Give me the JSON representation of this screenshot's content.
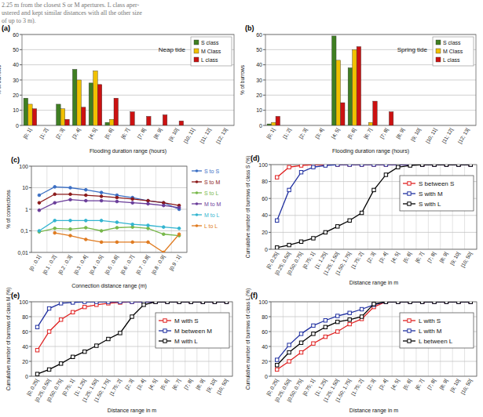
{
  "caption": [
    "2.25 m from the closest S or M apertures. L class aper-",
    "ustered and kept similar distances with all the other size",
    "of up to 3 m)."
  ],
  "chart_data": [
    {
      "type": "bar",
      "title": "(a)",
      "annotation": "Neap tide",
      "x_label": "Flooding duration range (hours)",
      "y_label": "% of burrows",
      "categories": [
        "[0; 1[",
        "[1; 2[",
        "[2; 3[",
        "[3; 4[",
        "[4; 5[",
        "[5; 6[",
        "[6; 7[",
        "[7; 8[",
        "[8; 9[",
        "[9; 10[",
        "[10; 11[",
        "[11; 12[",
        "[12; 13["
      ],
      "series": [
        {
          "name": "S class",
          "color": "#3f7f22",
          "values": [
            18,
            0,
            14,
            37,
            28,
            2,
            0,
            0,
            0,
            0,
            0,
            0,
            0
          ]
        },
        {
          "name": "M Class",
          "color": "#f0c000",
          "values": [
            14,
            0,
            11,
            30,
            36,
            4,
            0,
            0,
            0,
            0,
            0,
            0,
            0
          ]
        },
        {
          "name": "L class",
          "color": "#cc1111",
          "values": [
            11,
            0,
            4,
            12,
            27,
            18,
            9,
            6,
            7,
            3,
            0,
            0,
            0
          ]
        }
      ],
      "ylim": [
        0,
        60
      ],
      "yticks": [
        0,
        10,
        20,
        30,
        40,
        50,
        60
      ],
      "grid": true,
      "legend": "top-right"
    },
    {
      "type": "bar",
      "title": "(b)",
      "annotation": "Spring tide",
      "x_label": "Flooding duration range (hours)",
      "y_label": "% of burrows",
      "categories": [
        "[0; 1[",
        "[1; 2[",
        "[2; 3[",
        "[3; 4[",
        "[4; 5[",
        "[5; 6[",
        "[6; 7[",
        "[7; 8[",
        "[8; 9[",
        "[9; 10[",
        "[10; 11[",
        "[11; 12[",
        "[12; 13["
      ],
      "series": [
        {
          "name": "S class",
          "color": "#3f7f22",
          "values": [
            1,
            0,
            0,
            0,
            59,
            38,
            0,
            0,
            0,
            0,
            0,
            0,
            0
          ]
        },
        {
          "name": "M Class",
          "color": "#f0c000",
          "values": [
            2,
            0,
            0,
            0,
            43,
            50,
            2,
            0,
            0,
            0,
            0,
            0,
            0
          ]
        },
        {
          "name": "L class",
          "color": "#cc1111",
          "values": [
            6,
            0,
            0,
            0,
            15,
            52,
            16,
            9,
            0,
            0,
            0,
            0,
            0
          ]
        }
      ],
      "ylim": [
        0,
        60
      ],
      "yticks": [
        0,
        10,
        20,
        30,
        40,
        50,
        60
      ],
      "grid": true,
      "legend": "top-right"
    },
    {
      "type": "line",
      "title": "(c)",
      "x_label": "Connection distance range (m)",
      "y_label": "% of connections",
      "log": "y",
      "categories": [
        "[0 : 0.1[",
        "[0.1 : 0.2[",
        "[0.2 : 0.3[",
        "[0.3 : 0.4[",
        "[0.4 : 0.5[",
        "[0.5 : 0.6[",
        "[0.6 : 0.7[",
        "[0.7 : 0.8[",
        "[0.8 : 0.9[",
        "[0.9 : 1["
      ],
      "series": [
        {
          "name": "S to S",
          "color": "#3b6fc4",
          "values": [
            4.5,
            11,
            10,
            8,
            6,
            4.5,
            3.5,
            2.5,
            2,
            1
          ]
        },
        {
          "name": "S to M",
          "color": "#8b1a1a",
          "values": [
            2,
            5,
            5,
            4.5,
            4,
            3.5,
            3,
            2.5,
            2,
            1.5
          ]
        },
        {
          "name": "S to L",
          "color": "#77b84a",
          "values": [
            0.09,
            0.13,
            0.12,
            0.14,
            0.1,
            0.14,
            0.15,
            0.13,
            0.07,
            0.06
          ]
        },
        {
          "name": "M to M",
          "color": "#6a3d9a",
          "values": [
            0.9,
            2,
            2.8,
            2.5,
            2.5,
            2.3,
            2,
            1.8,
            1.5,
            1.2
          ]
        },
        {
          "name": "M to L",
          "color": "#33b5d0",
          "values": [
            0.1,
            0.3,
            0.3,
            0.3,
            0.3,
            0.25,
            0.2,
            0.18,
            0.15,
            0.13
          ]
        },
        {
          "name": "L to L",
          "color": "#e07b20",
          "values": [
            null,
            0.08,
            0.06,
            0.04,
            0.03,
            0.03,
            0.03,
            0.03,
            0.01,
            0.07
          ]
        }
      ],
      "ylim": [
        0.01,
        100
      ],
      "yticks": [
        {
          "value": 0.01,
          "label": "0,01"
        },
        {
          "value": 0.1,
          "label": "0,1"
        },
        1,
        10,
        100
      ],
      "grid": true,
      "legend": "right",
      "marker": "circle"
    },
    {
      "type": "line",
      "title": "(d)",
      "x_label": "Distance range in m",
      "y_label": "Cumulative number of burrows of class S (%)",
      "categories": [
        "[0; 0.25[",
        "[0.25; 0.50[",
        "[0.50; 0.75[",
        "[0.75; 1[",
        "[1; 1.25[",
        "[1.25; 1.50[",
        "[1.50; 1.75[",
        "[1.75; 2[",
        "[2; 3[",
        "[3; 4[",
        "[4; 5[",
        "[5; 6[",
        "[6; 7[",
        "[7; 8[",
        "[8; 9[",
        "[9; 10[",
        "[10; 50["
      ],
      "series": [
        {
          "name": "S between S",
          "color": "#e02020",
          "values": [
            85,
            97,
            99,
            100,
            100,
            100,
            100,
            100,
            100,
            100,
            100,
            100,
            100,
            100,
            100,
            100,
            100
          ]
        },
        {
          "name": "S with M",
          "color": "#2030a0",
          "values": [
            34,
            70,
            91,
            97,
            99,
            100,
            100,
            100,
            100,
            100,
            100,
            100,
            100,
            100,
            100,
            100,
            100
          ]
        },
        {
          "name": "S with L",
          "color": "#000000",
          "values": [
            2,
            5,
            9,
            13,
            20,
            27,
            34,
            43,
            70,
            88,
            97,
            99,
            100,
            100,
            100,
            100,
            100
          ]
        }
      ],
      "ylim": [
        0,
        100
      ],
      "yticks": [
        0,
        20,
        40,
        60,
        80,
        100
      ],
      "grid": true,
      "legend": "top-right",
      "marker": "square"
    },
    {
      "type": "line",
      "title": "(e)",
      "x_label": "Distance range in m",
      "y_label": "Cumulative number of burrows of class M (%)",
      "categories": [
        "[0; 0.25[",
        "[0.25; 0.50[",
        "[0.50; 0.75[",
        "[0.75; 1[",
        "[1; 1.25[",
        "[1.25; 1.50[",
        "[1.50; 1.75[",
        "[1.75; 2[",
        "[2; 3[",
        "[3; 4[",
        "[4; 5[",
        "[5; 6[",
        "[6; 7[",
        "[7; 8[",
        "[8; 9[",
        "[9; 10[",
        "[10; 50["
      ],
      "series": [
        {
          "name": "M with S",
          "color": "#e02020",
          "values": [
            35,
            60,
            76,
            86,
            93,
            96,
            98,
            99,
            100,
            100,
            100,
            100,
            100,
            100,
            100,
            100,
            100
          ]
        },
        {
          "name": "M between M",
          "color": "#2030a0",
          "values": [
            66,
            91,
            98,
            99,
            100,
            100,
            100,
            100,
            100,
            100,
            100,
            100,
            100,
            100,
            100,
            100,
            100
          ]
        },
        {
          "name": "M with L",
          "color": "#000000",
          "values": [
            3,
            9,
            17,
            26,
            33,
            41,
            50,
            58,
            80,
            96,
            100,
            100,
            100,
            100,
            100,
            100,
            100
          ]
        }
      ],
      "ylim": [
        0,
        100
      ],
      "yticks": [
        0,
        20,
        40,
        60,
        80,
        100
      ],
      "grid": true,
      "legend": "top-right",
      "marker": "square"
    },
    {
      "type": "line",
      "title": "(f)",
      "x_label": "Distance range in m",
      "y_label": "Cumulative number of burrows of class L (%)",
      "categories": [
        "[0; 0.25[",
        "[0.25; 0.50[",
        "[0.50; 0.75[",
        "[0.75; 1[",
        "[1; 1.25[",
        "[1.25; 1.50[",
        "[1.50; 1.75[",
        "[1.75; 2[",
        "[2; 3[",
        "[3; 4[",
        "[4; 5[",
        "[5; 6[",
        "[6; 7[",
        "[7; 8[",
        "[8; 9[",
        "[9; 10[",
        "[10; 50["
      ],
      "series": [
        {
          "name": "L with S",
          "color": "#e02020",
          "values": [
            9,
            20,
            32,
            44,
            53,
            60,
            70,
            77,
            93,
            100,
            100,
            100,
            100,
            100,
            100,
            100,
            100
          ]
        },
        {
          "name": "L with M",
          "color": "#2030a0",
          "values": [
            22,
            42,
            57,
            68,
            75,
            81,
            85,
            90,
            96,
            100,
            100,
            100,
            100,
            100,
            100,
            100,
            100
          ]
        },
        {
          "name": "L between L",
          "color": "#000000",
          "values": [
            15,
            32,
            45,
            57,
            66,
            73,
            76,
            80,
            97,
            100,
            100,
            100,
            100,
            100,
            100,
            100,
            100
          ]
        }
      ],
      "ylim": [
        0,
        100
      ],
      "yticks": [
        0,
        20,
        40,
        60,
        80,
        100
      ],
      "grid": true,
      "legend": "top-right",
      "marker": "square"
    }
  ]
}
